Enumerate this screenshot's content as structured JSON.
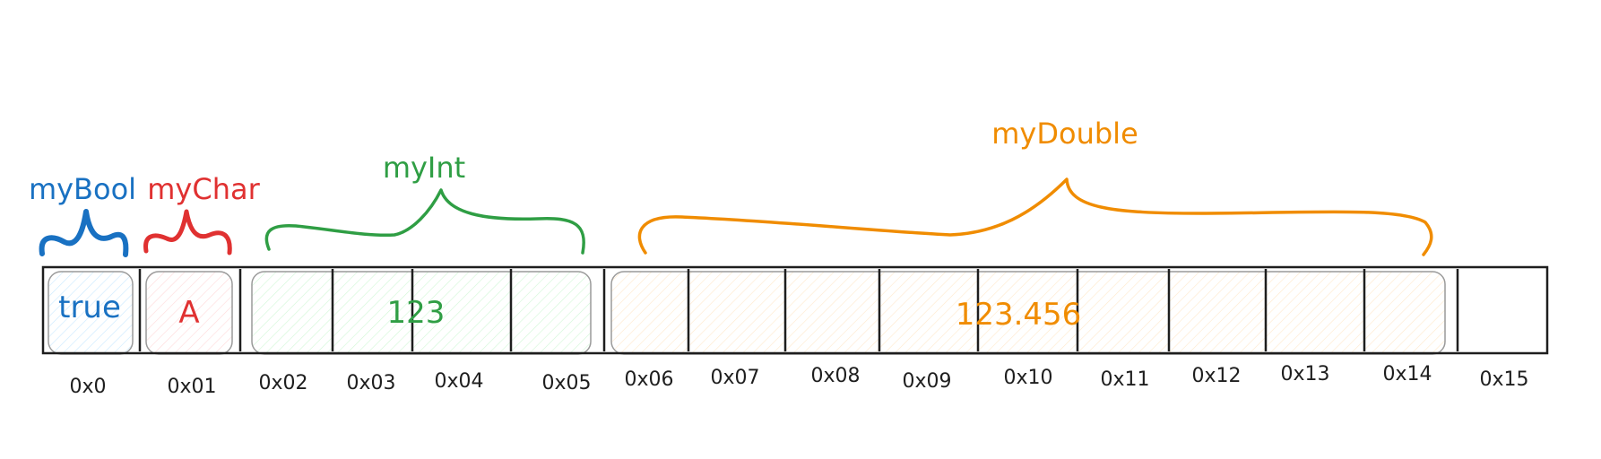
{
  "colors": {
    "bool": "#1971c2",
    "char": "#e03131",
    "int": "#2f9e44",
    "double": "#f08c00",
    "outline": "#1e1e1e"
  },
  "variables": {
    "bool": {
      "name": "myBool",
      "value": "true"
    },
    "char": {
      "name": "myChar",
      "value": "A"
    },
    "int": {
      "name": "myInt",
      "value": "123"
    },
    "double": {
      "name": "myDouble",
      "value": "123.456"
    }
  },
  "addresses": [
    "0x0",
    "0x01",
    "0x02",
    "0x03",
    "0x04",
    "0x05",
    "0x06",
    "0x07",
    "0x08",
    "0x09",
    "0x10",
    "0x11",
    "0x12",
    "0x13",
    "0x14",
    "0x15"
  ]
}
